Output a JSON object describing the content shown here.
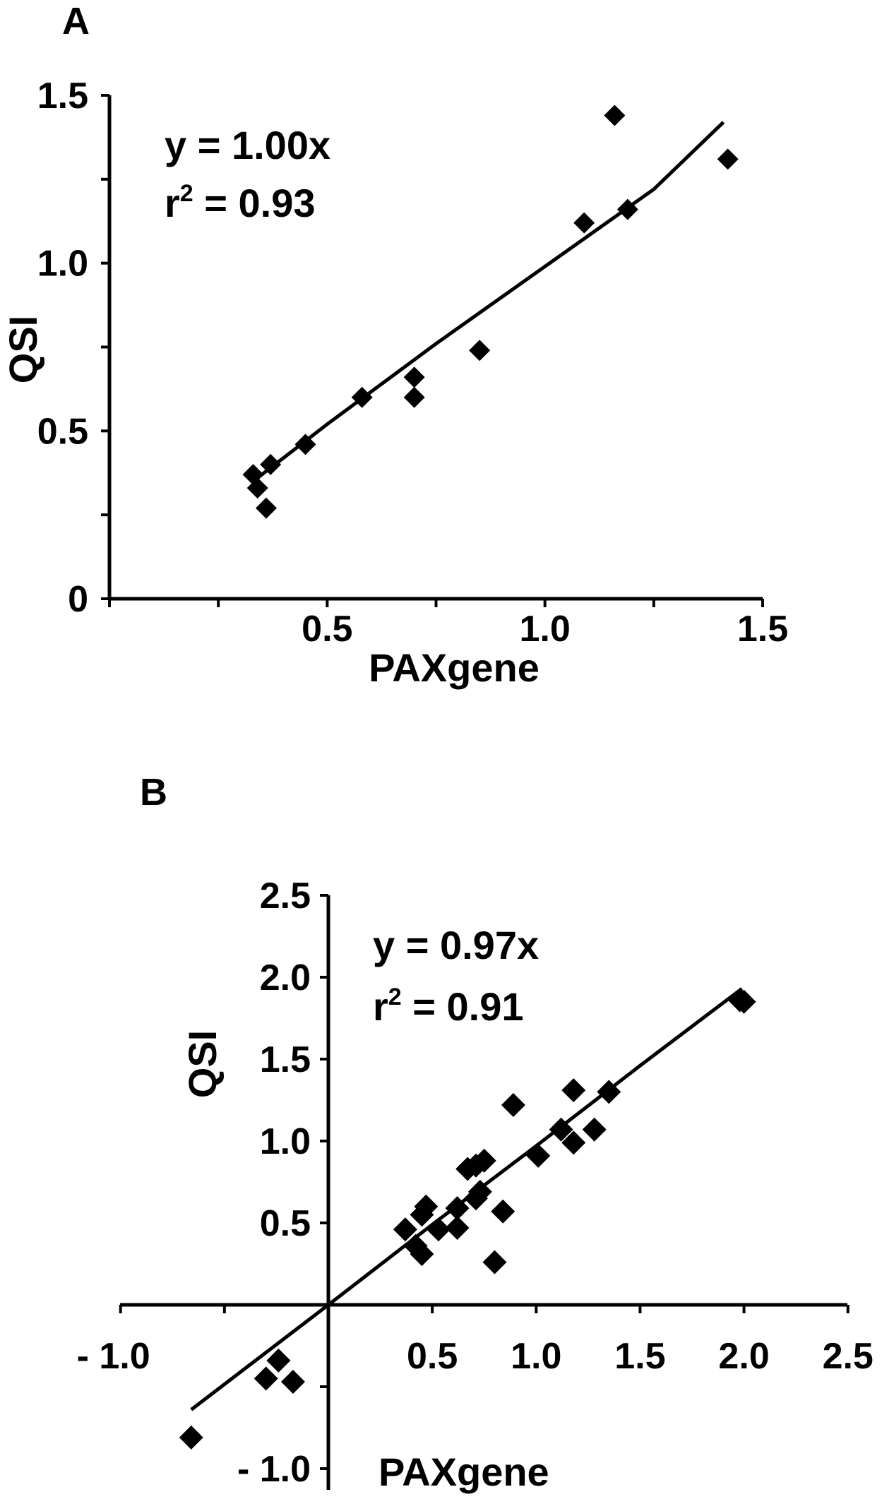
{
  "chart_data": [
    {
      "panel": "A",
      "type": "scatter",
      "xlabel": "PAXgene",
      "ylabel": "QSI",
      "xlim": [
        0,
        1.5
      ],
      "ylim": [
        0,
        1.5
      ],
      "xticks": [
        "0.5",
        "1.0",
        "1.5"
      ],
      "yticks": [
        "0",
        "0.5",
        "1.0",
        "1.5"
      ],
      "equation": "y = 1.00x",
      "r2_prefix": "r",
      "r2_sup": "2",
      "r2_suffix": " = 0.93",
      "points": [
        {
          "x": 0.33,
          "y": 0.37
        },
        {
          "x": 0.34,
          "y": 0.33
        },
        {
          "x": 0.36,
          "y": 0.27
        },
        {
          "x": 0.37,
          "y": 0.4
        },
        {
          "x": 0.45,
          "y": 0.46
        },
        {
          "x": 0.58,
          "y": 0.6
        },
        {
          "x": 0.7,
          "y": 0.66
        },
        {
          "x": 0.7,
          "y": 0.6
        },
        {
          "x": 0.85,
          "y": 0.74
        },
        {
          "x": 1.09,
          "y": 1.12
        },
        {
          "x": 1.16,
          "y": 1.44
        },
        {
          "x": 1.19,
          "y": 1.16
        },
        {
          "x": 1.42,
          "y": 1.31
        }
      ],
      "fit_line": [
        {
          "x": 0.33,
          "y": 0.35
        },
        {
          "x": 0.5,
          "y": 0.52
        },
        {
          "x": 0.75,
          "y": 0.76
        },
        {
          "x": 1.0,
          "y": 0.99
        },
        {
          "x": 1.25,
          "y": 1.22
        },
        {
          "x": 1.41,
          "y": 1.42
        }
      ]
    },
    {
      "panel": "B",
      "type": "scatter",
      "xlabel": "PAXgene",
      "ylabel": "QSI",
      "xlim": [
        -1.0,
        2.5
      ],
      "ylim": [
        -1.0,
        2.5
      ],
      "xticks": [
        "- 1.0",
        "0.5",
        "1.0",
        "1.5",
        "2.0",
        "2.5"
      ],
      "yticks": [
        "- 1.0",
        "0.5",
        "1.0",
        "1.5",
        "2.0",
        "2.5"
      ],
      "equation": "y = 0.97x",
      "r2_prefix": "r",
      "r2_sup": "2",
      "r2_suffix": " = 0.91",
      "points": [
        {
          "x": -0.66,
          "y": -0.81
        },
        {
          "x": -0.3,
          "y": -0.45
        },
        {
          "x": -0.24,
          "y": -0.34
        },
        {
          "x": -0.17,
          "y": -0.47
        },
        {
          "x": 0.37,
          "y": 0.46
        },
        {
          "x": 0.42,
          "y": 0.36
        },
        {
          "x": 0.45,
          "y": 0.31
        },
        {
          "x": 0.45,
          "y": 0.55
        },
        {
          "x": 0.47,
          "y": 0.6
        },
        {
          "x": 0.53,
          "y": 0.46
        },
        {
          "x": 0.62,
          "y": 0.47
        },
        {
          "x": 0.62,
          "y": 0.59
        },
        {
          "x": 0.67,
          "y": 0.83
        },
        {
          "x": 0.71,
          "y": 0.65
        },
        {
          "x": 0.71,
          "y": 0.85
        },
        {
          "x": 0.73,
          "y": 0.69
        },
        {
          "x": 0.75,
          "y": 0.88
        },
        {
          "x": 0.8,
          "y": 0.26
        },
        {
          "x": 0.84,
          "y": 0.57
        },
        {
          "x": 0.89,
          "y": 1.22
        },
        {
          "x": 1.01,
          "y": 0.91
        },
        {
          "x": 1.12,
          "y": 1.07
        },
        {
          "x": 1.18,
          "y": 0.99
        },
        {
          "x": 1.18,
          "y": 1.31
        },
        {
          "x": 1.28,
          "y": 1.07
        },
        {
          "x": 1.35,
          "y": 1.3
        },
        {
          "x": 1.98,
          "y": 1.86
        },
        {
          "x": 2.0,
          "y": 1.85
        }
      ],
      "fit_line": [
        {
          "x": -0.66,
          "y": -0.64
        },
        {
          "x": 0.0,
          "y": 0.0
        },
        {
          "x": 0.5,
          "y": 0.49
        },
        {
          "x": 1.0,
          "y": 0.97
        },
        {
          "x": 1.5,
          "y": 1.46
        },
        {
          "x": 1.99,
          "y": 1.93
        }
      ]
    }
  ]
}
